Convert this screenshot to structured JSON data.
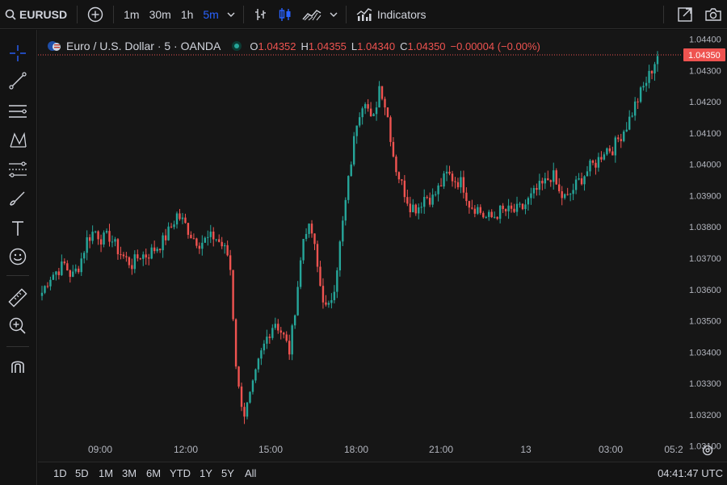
{
  "toolbar": {
    "symbol": "EURUSD",
    "intervals": [
      {
        "label": "1m",
        "active": false
      },
      {
        "label": "30m",
        "active": false
      },
      {
        "label": "1h",
        "active": false
      },
      {
        "label": "5m",
        "active": true
      }
    ],
    "indicators_label": "Indicators"
  },
  "legend": {
    "title": "Euro / U.S. Dollar · 5 · OANDA",
    "o_label": "O",
    "o_value": "1.04352",
    "h_label": "H",
    "h_value": "1.04355",
    "l_label": "L",
    "l_value": "1.04340",
    "c_label": "C",
    "c_value": "1.04350",
    "change": "−0.00004 (−0.00%)"
  },
  "price_scale": {
    "labels": [
      "1.04400",
      "1.04300",
      "1.04200",
      "1.04100",
      "1.04000",
      "1.03900",
      "1.03800",
      "1.03700",
      "1.03600",
      "1.03500",
      "1.03400",
      "1.03300",
      "1.03200",
      "1.03100"
    ],
    "current_price": "1.04350"
  },
  "time_scale": {
    "labels": [
      "09:00",
      "12:00",
      "15:00",
      "18:00",
      "21:00",
      "13",
      "03:00",
      "05:2"
    ]
  },
  "ranges": [
    "1D",
    "5D",
    "1M",
    "3M",
    "6M",
    "YTD",
    "1Y",
    "5Y",
    "All"
  ],
  "clock": "04:41:47 UTC",
  "colors": {
    "up": "#26a69a",
    "down": "#ef5350",
    "active": "#2962ff"
  },
  "chart_data": {
    "type": "candlestick",
    "title": "Euro / U.S. Dollar · 5 · OANDA",
    "ylim": [
      1.0305,
      1.0443
    ],
    "x_ticks": [
      "09:00",
      "12:00",
      "15:00",
      "18:00",
      "21:00",
      "13",
      "03:00",
      "05:2"
    ],
    "series": [
      {
        "values": [
          1.0359,
          1.0364,
          1.0366,
          1.0368,
          1.0364,
          1.0368,
          1.0376,
          1.0379,
          1.0376,
          1.0377,
          1.0373,
          1.037,
          1.0368,
          1.0371,
          1.0371,
          1.0373,
          1.0375,
          1.0379,
          1.0384,
          1.0381,
          1.0377,
          1.0375,
          1.0376,
          1.0377,
          1.0374,
          1.037,
          1.033,
          1.032,
          1.0328,
          1.0338,
          1.0345,
          1.035,
          1.0346,
          1.034,
          1.036,
          1.038,
          1.0378,
          1.0362,
          1.0352,
          1.0362,
          1.038,
          1.0398,
          1.0415,
          1.0422,
          1.0412,
          1.0426,
          1.0416,
          1.04,
          1.0393,
          1.0387,
          1.0386,
          1.039,
          1.0389,
          1.0393,
          1.0397,
          1.0395,
          1.0394,
          1.0387,
          1.0386,
          1.0383,
          1.0383,
          1.0385,
          1.0385,
          1.0385,
          1.0386,
          1.0389,
          1.0392,
          1.0394,
          1.0397,
          1.039,
          1.0389,
          1.0393,
          1.0396,
          1.0399,
          1.0401,
          1.0405,
          1.0405,
          1.0409,
          1.0413,
          1.0419,
          1.0424,
          1.0429,
          1.0435
        ]
      }
    ]
  }
}
